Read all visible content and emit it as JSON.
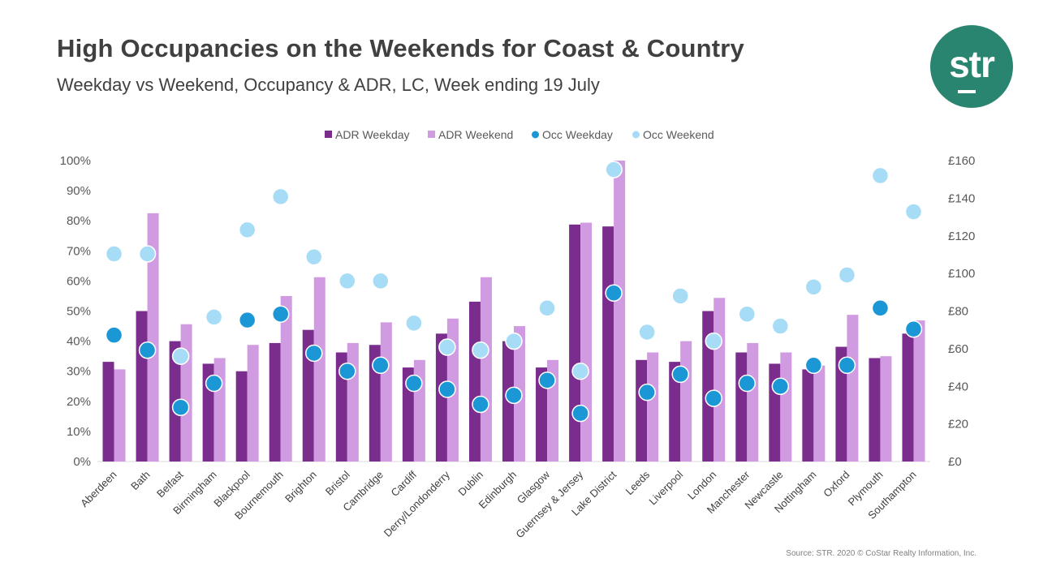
{
  "header": {
    "title": "High Occupancies on the Weekends for Coast & Country",
    "subtitle": "Weekday vs Weekend, Occupancy & ADR, LC, Week ending 19 July"
  },
  "logo": {
    "text": "str",
    "color": "#2a8570"
  },
  "footer": {
    "source": "Source: STR. 2020 © CoStar Realty Information, Inc."
  },
  "colors": {
    "adr_weekday": "#7b2d8e",
    "adr_weekend": "#d09be0",
    "occ_weekday": "#1b97d6",
    "occ_weekend": "#a6dcf5",
    "marker_outline": "#ffffff"
  },
  "chart_data": {
    "type": "bar",
    "categories": [
      "Aberdeen",
      "Bath",
      "Belfast",
      "Birmingham",
      "Blackpool",
      "Bournemouth",
      "Brighton",
      "Bristol",
      "Cambridge",
      "Cardiff",
      "Derry/Londonderry",
      "Dublin",
      "Edinburgh",
      "Glasgow",
      "Guernsey & Jersey",
      "Lake District",
      "Leeds",
      "Liverpool",
      "London",
      "Manchester",
      "Newcastle",
      "Nottingham",
      "Oxford",
      "Plymouth",
      "Southampton"
    ],
    "y_left": {
      "ticks": [
        "0%",
        "10%",
        "20%",
        "30%",
        "40%",
        "50%",
        "60%",
        "70%",
        "80%",
        "90%",
        "100%"
      ],
      "min": 0,
      "max": 100,
      "unit": "%"
    },
    "y_right": {
      "ticks": [
        "£0",
        "£20",
        "£40",
        "£60",
        "£80",
        "£100",
        "£120",
        "£140",
        "£160"
      ],
      "min": 0,
      "max": 160,
      "unit": "£"
    },
    "legend_position": "top-center",
    "grid": false,
    "series": [
      {
        "name": "ADR Weekday",
        "kind": "bar",
        "axis": "right",
        "values": [
          53,
          80,
          64,
          52,
          48,
          63,
          70,
          58,
          62,
          50,
          68,
          85,
          64,
          50,
          126,
          125,
          54,
          53,
          80,
          58,
          52,
          49,
          61,
          55,
          68
        ]
      },
      {
        "name": "ADR Weekend",
        "kind": "bar",
        "axis": "right",
        "values": [
          49,
          132,
          73,
          55,
          62,
          88,
          98,
          63,
          74,
          54,
          76,
          98,
          72,
          54,
          127,
          160,
          58,
          64,
          87,
          63,
          58,
          51,
          78,
          56,
          75
        ]
      },
      {
        "name": "Occ Weekday",
        "kind": "marker",
        "axis": "left",
        "values": [
          42,
          37,
          18,
          26,
          47,
          49,
          36,
          30,
          32,
          26,
          24,
          19,
          22,
          27,
          16,
          56,
          23,
          29,
          21,
          26,
          25,
          32,
          32,
          51,
          44
        ]
      },
      {
        "name": "Occ Weekend",
        "kind": "marker",
        "axis": "left",
        "values": [
          69,
          69,
          35,
          48,
          77,
          88,
          68,
          60,
          60,
          46,
          38,
          37,
          40,
          51,
          30,
          97,
          43,
          55,
          40,
          49,
          45,
          58,
          62,
          95,
          83
        ]
      }
    ]
  }
}
